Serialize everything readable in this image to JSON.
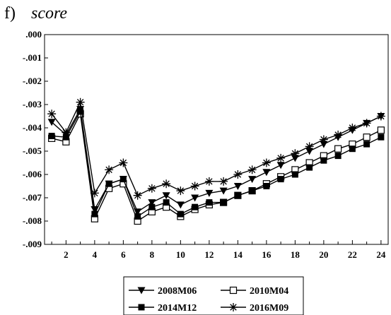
{
  "panel_label": "f)",
  "chart_data": {
    "type": "line",
    "title": "score",
    "xlabel": "",
    "ylabel": "",
    "x": [
      1,
      2,
      3,
      4,
      5,
      6,
      7,
      8,
      9,
      10,
      11,
      12,
      13,
      14,
      15,
      16,
      17,
      18,
      19,
      20,
      21,
      22,
      23,
      24
    ],
    "xlim": [
      0.5,
      24.5
    ],
    "xticks": [
      "2",
      "4",
      "6",
      "8",
      "10",
      "12",
      "14",
      "16",
      "18",
      "20",
      "22",
      "24"
    ],
    "xtick_values": [
      2,
      4,
      6,
      8,
      10,
      12,
      14,
      16,
      18,
      20,
      22,
      24
    ],
    "ylim": [
      -0.009,
      0.0
    ],
    "yticks": [
      ".000",
      "-.001",
      "-.002",
      "-.003",
      "-.004",
      "-.005",
      "-.006",
      "-.007",
      "-.008",
      "-.009"
    ],
    "ytick_values": [
      0.0,
      -0.001,
      -0.002,
      -0.003,
      -0.004,
      -0.005,
      -0.006,
      -0.007,
      -0.008,
      -0.009
    ],
    "grid": false,
    "legend_position": "bottom-center",
    "series": [
      {
        "name": "2008M06",
        "marker": "triangle-down",
        "color": "#000000",
        "values": [
          -0.00375,
          -0.0043,
          -0.0032,
          -0.0075,
          -0.0064,
          -0.0062,
          -0.0076,
          -0.0072,
          -0.0069,
          -0.0073,
          -0.007,
          -0.0068,
          -0.0067,
          -0.0065,
          -0.0062,
          -0.0059,
          -0.0056,
          -0.0053,
          -0.005,
          -0.0047,
          -0.0044,
          -0.0041,
          -0.0038,
          -0.0035
        ]
      },
      {
        "name": "2010M04",
        "marker": "square-open",
        "color": "#000000",
        "values": [
          -0.00445,
          -0.0046,
          -0.0034,
          -0.0079,
          -0.0066,
          -0.0064,
          -0.008,
          -0.0076,
          -0.0074,
          -0.0078,
          -0.0075,
          -0.0073,
          -0.0072,
          -0.0069,
          -0.0067,
          -0.0064,
          -0.0061,
          -0.0058,
          -0.0055,
          -0.0052,
          -0.0049,
          -0.0047,
          -0.0044,
          -0.0041
        ]
      },
      {
        "name": "2014M12",
        "marker": "square-filled",
        "color": "#000000",
        "values": [
          -0.00435,
          -0.0044,
          -0.0033,
          -0.0077,
          -0.0064,
          -0.0062,
          -0.0078,
          -0.0074,
          -0.0072,
          -0.0077,
          -0.0074,
          -0.0072,
          -0.0072,
          -0.0069,
          -0.0067,
          -0.0065,
          -0.0062,
          -0.006,
          -0.0057,
          -0.0054,
          -0.0052,
          -0.0049,
          -0.0047,
          -0.0044
        ]
      },
      {
        "name": "2016M09",
        "marker": "asterisk",
        "color": "#000000",
        "values": [
          -0.0034,
          -0.0042,
          -0.0029,
          -0.0068,
          -0.0058,
          -0.0055,
          -0.0069,
          -0.0066,
          -0.0064,
          -0.0067,
          -0.0065,
          -0.0063,
          -0.0063,
          -0.006,
          -0.0058,
          -0.0055,
          -0.0053,
          -0.0051,
          -0.0048,
          -0.0045,
          -0.0043,
          -0.004,
          -0.0038,
          -0.0035
        ]
      }
    ]
  }
}
